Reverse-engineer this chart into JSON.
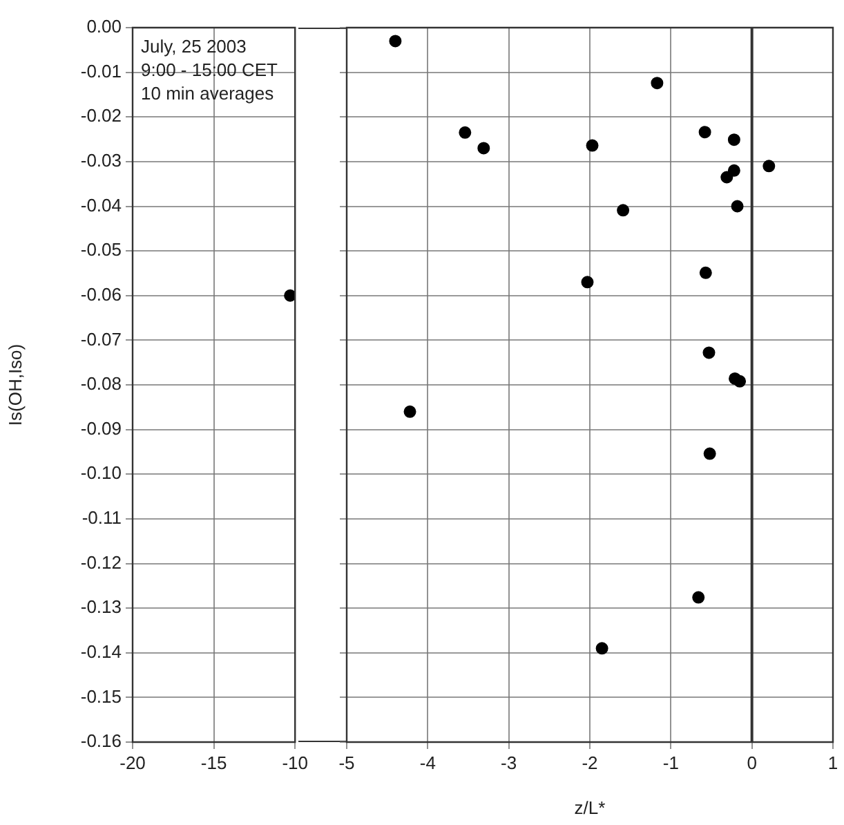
{
  "chart_data": [
    {
      "type": "scatter",
      "ylabel": "Is(OH,Iso)",
      "annotations": [
        "July, 25 2003",
        "9:00 - 15:00 CET",
        "10 min averages"
      ],
      "grid": true,
      "marker": "circle",
      "xlim": [
        -20,
        -10
      ],
      "xticks": [
        -20,
        -15,
        -10
      ],
      "ylim": [
        -0.16,
        0
      ],
      "yticks": [
        {
          "value": 0,
          "label": "0.00"
        },
        {
          "value": -0.01,
          "label": "-0.01"
        },
        {
          "value": -0.02,
          "label": "-0.02"
        },
        {
          "value": -0.03,
          "label": "-0.03"
        },
        {
          "value": -0.04,
          "label": "-0.04"
        },
        {
          "value": -0.05,
          "label": "-0.05"
        },
        {
          "value": -0.06,
          "label": "-0.06"
        },
        {
          "value": -0.07,
          "label": "-0.07"
        },
        {
          "value": -0.08,
          "label": "-0.08"
        },
        {
          "value": -0.09,
          "label": "-0.09"
        },
        {
          "value": -0.1,
          "label": "-0.10"
        },
        {
          "value": -0.11,
          "label": "-0.11"
        },
        {
          "value": -0.12,
          "label": "-0.12"
        },
        {
          "value": -0.13,
          "label": "-0.13"
        },
        {
          "value": -0.14,
          "label": "-0.14"
        },
        {
          "value": -0.15,
          "label": "-0.15"
        },
        {
          "value": -0.16,
          "label": "-0.16"
        }
      ],
      "series": [
        {
          "color": "#000000",
          "x": [
            -10.3
          ],
          "values": [
            -0.06
          ]
        }
      ]
    },
    {
      "type": "scatter",
      "xlabel": "z/L*",
      "grid": true,
      "marker": "circle",
      "tick_labels": "x",
      "xlim": [
        -5,
        1
      ],
      "xticks": [
        -5,
        -4,
        -3,
        -2,
        -1,
        0,
        1
      ],
      "ylim": [
        -0.16,
        0
      ],
      "yticks": [
        0,
        -0.01,
        -0.02,
        -0.03,
        -0.04,
        -0.05,
        -0.06,
        -0.07,
        -0.08,
        -0.09,
        -0.1,
        -0.11,
        -0.12,
        -0.13,
        -0.14,
        -0.15,
        -0.16
      ],
      "ref_lines": [
        {
          "axis": "x",
          "value": 0,
          "color": "#333333"
        }
      ],
      "series": [
        {
          "color": "#000000",
          "x": [
            -4.4,
            -3.54,
            -3.31,
            -4.22,
            -1.17,
            -0.58,
            -0.22,
            0.21,
            -0.22,
            -0.31,
            -1.97,
            -0.18,
            -1.59,
            -0.57,
            -2.03,
            -0.53,
            -0.21,
            -0.15,
            -0.52,
            -0.66,
            -1.85
          ],
          "values": [
            -0.003,
            -0.0235,
            -0.027,
            -0.086,
            -0.0124,
            -0.0234,
            -0.0251,
            -0.031,
            -0.032,
            -0.0335,
            -0.0264,
            -0.04,
            -0.0409,
            -0.0549,
            -0.057,
            -0.0728,
            -0.0786,
            -0.0792,
            -0.0954,
            -0.1276,
            -0.139
          ]
        }
      ]
    }
  ]
}
